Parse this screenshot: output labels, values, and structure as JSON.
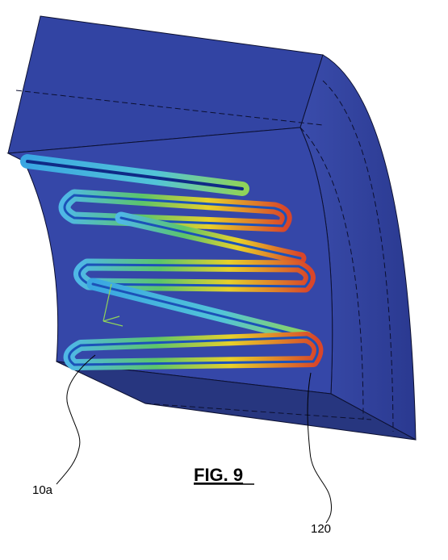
{
  "figure": {
    "title": "FIG. 9",
    "refs": {
      "element_10a": "10a",
      "element_120": "120"
    }
  },
  "colors": {
    "body_face": "#3546a6",
    "body_top": "#3042a0",
    "body_side": "#2c3c96",
    "body_bottom": "#26347f",
    "channel_hot": "#d8462a",
    "channel_warm": "#e8d02a",
    "channel_mid": "#4fc06a",
    "channel_cool": "#3bb0e6",
    "outline": "#0c1030"
  }
}
